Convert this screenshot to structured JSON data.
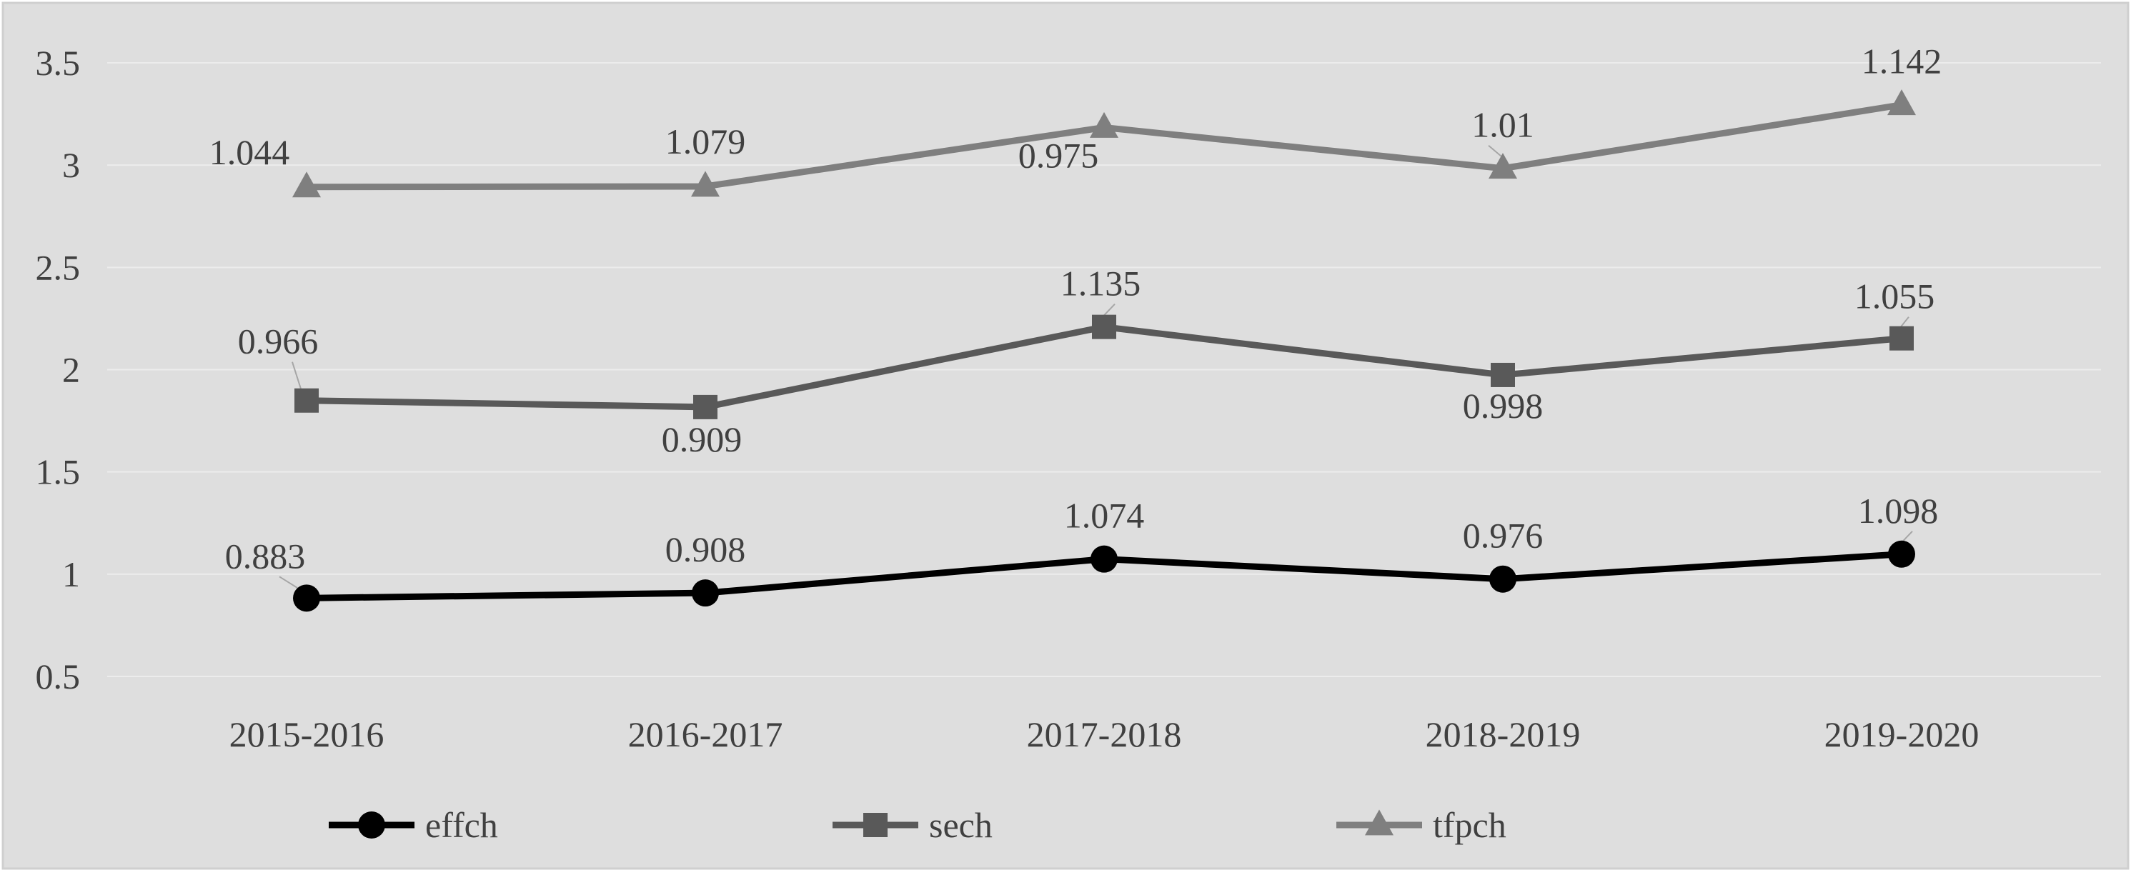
{
  "colors": {
    "background": "#dedede",
    "border": "#cfcfcf",
    "gridline": "#ececec",
    "text": "#404040",
    "leader": "#a6a6a6"
  },
  "chart_data": {
    "type": "line",
    "categories": [
      "2015-2016",
      "2016-2017",
      "2017-2018",
      "2018-2019",
      "2019-2020"
    ],
    "ylim": [
      0.5,
      3.5
    ],
    "yticks": [
      0.5,
      1,
      1.5,
      2,
      2.5,
      3,
      3.5
    ],
    "ytick_labels": [
      "0.5",
      "1",
      "1.5",
      "2",
      "2.5",
      "3",
      "3.5"
    ],
    "grid": true,
    "legend_position": "bottom",
    "series": [
      {
        "name": "effch",
        "color": "#000000",
        "marker": "circle",
        "values": [
          0.883,
          0.908,
          1.074,
          0.976,
          1.098
        ],
        "labels": [
          "0.883",
          "0.908",
          "1.074",
          "0.976",
          "1.098"
        ]
      },
      {
        "name": "sech",
        "color": "#595959",
        "marker": "square",
        "values": [
          1.849,
          1.817,
          2.209,
          1.974,
          2.153
        ],
        "labels": [
          "0.966",
          "0.909",
          "1.135",
          "0.998",
          "1.055"
        ]
      },
      {
        "name": "tfpch",
        "color": "#7f7f7f",
        "marker": "triangle",
        "values": [
          2.893,
          2.896,
          3.184,
          2.984,
          3.295
        ],
        "labels": [
          "1.044",
          "1.079",
          "0.975",
          "1.01",
          "1.142"
        ]
      }
    ]
  }
}
